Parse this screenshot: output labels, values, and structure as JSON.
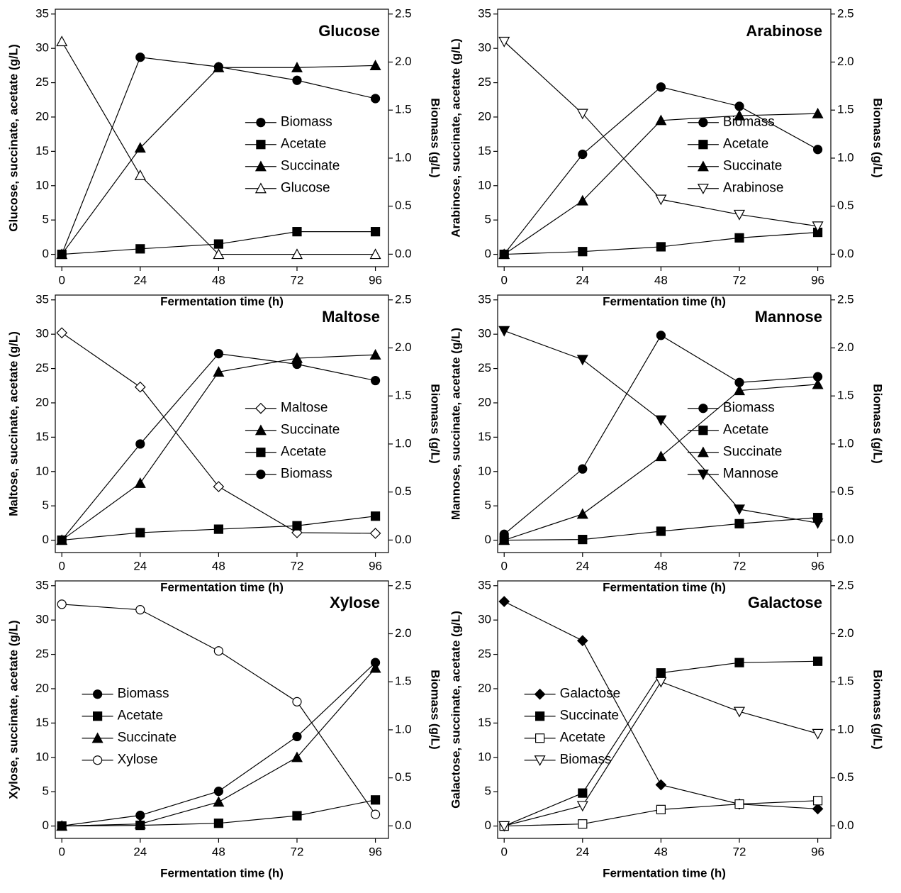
{
  "chart_data": [
    {
      "type": "line",
      "title": "Glucose",
      "x_label": "Fermentation time (h)",
      "y_label": "Glucose, succinate, acetate (g/L)",
      "y2_label": "Biomass (g/L)",
      "x": [
        0,
        24,
        48,
        72,
        96
      ],
      "xlim": [
        -2,
        100
      ],
      "xticks": [
        0,
        24,
        48,
        72,
        96
      ],
      "ylim": [
        -1.8,
        35.7
      ],
      "yticks": [
        0,
        5,
        10,
        15,
        20,
        25,
        30,
        35
      ],
      "y2lim": [
        -0.13,
        2.55
      ],
      "y2ticks": [
        {
          "value": 0,
          "label": "0.0"
        },
        0.5,
        {
          "value": 1,
          "label": "1.0"
        },
        1.5,
        {
          "value": 2,
          "label": "2.0"
        },
        2.5
      ],
      "legend_position": "center-right",
      "series": [
        {
          "name": "Biomass",
          "axis": "y2",
          "marker": "circle",
          "filled": true,
          "color": "#000000",
          "values": [
            0,
            2.05,
            1.95,
            1.81,
            1.62
          ]
        },
        {
          "name": "Acetate",
          "marker": "square",
          "filled": true,
          "color": "#000000",
          "values": [
            0,
            0.8,
            1.5,
            3.3,
            3.3
          ]
        },
        {
          "name": "Succinate",
          "marker": "triangle",
          "filled": true,
          "color": "#000000",
          "values": [
            0,
            15.5,
            27.2,
            27.2,
            27.5
          ]
        },
        {
          "name": "Glucose",
          "marker": "triangle",
          "filled": false,
          "color": "#000000",
          "values": [
            31,
            11.5,
            0,
            0,
            0
          ]
        }
      ]
    },
    {
      "type": "line",
      "title": "Arabinose",
      "x_label": "Fermentation time (h)",
      "y_label": "Arabinose, succinate, acetate (g/L)",
      "y2_label": "Biomass (g/L)",
      "x": [
        0,
        24,
        48,
        72,
        96
      ],
      "xlim": [
        -2,
        100
      ],
      "xticks": [
        0,
        24,
        48,
        72,
        96
      ],
      "ylim": [
        -1.8,
        35.7
      ],
      "yticks": [
        0,
        5,
        10,
        15,
        20,
        25,
        30,
        35
      ],
      "y2lim": [
        -0.13,
        2.55
      ],
      "y2ticks": [
        {
          "value": 0,
          "label": "0.0"
        },
        0.5,
        {
          "value": 1,
          "label": "1.0"
        },
        1.5,
        {
          "value": 2,
          "label": "2.0"
        },
        2.5
      ],
      "legend_position": "center-right",
      "series": [
        {
          "name": "Biomass",
          "axis": "y2",
          "marker": "circle",
          "filled": true,
          "color": "#000000",
          "values": [
            0,
            1.04,
            1.74,
            1.54,
            1.09
          ]
        },
        {
          "name": "Acetate",
          "marker": "square",
          "filled": true,
          "color": "#000000",
          "values": [
            0,
            0.4,
            1.1,
            2.4,
            3.2
          ]
        },
        {
          "name": "Succinate",
          "marker": "triangle",
          "filled": true,
          "color": "#000000",
          "values": [
            0,
            7.8,
            19.5,
            20.2,
            20.5
          ]
        },
        {
          "name": "Arabinose",
          "marker": "triangle-down",
          "filled": false,
          "color": "#000000",
          "values": [
            31,
            20.5,
            8,
            5.8,
            4.1
          ]
        }
      ]
    },
    {
      "type": "line",
      "title": "Maltose",
      "x_label": "Fermentation time (h)",
      "y_label": "Maltose, succinate, acetate (g/L)",
      "y2_label": "Biomass (g/L)",
      "x": [
        0,
        24,
        48,
        72,
        96
      ],
      "xlim": [
        -2,
        100
      ],
      "xticks": [
        0,
        24,
        48,
        72,
        96
      ],
      "ylim": [
        -1.8,
        35.7
      ],
      "yticks": [
        0,
        5,
        10,
        15,
        20,
        25,
        30,
        35
      ],
      "y2lim": [
        -0.13,
        2.55
      ],
      "y2ticks": [
        {
          "value": 0,
          "label": "0.0"
        },
        0.5,
        {
          "value": 1,
          "label": "1.0"
        },
        1.5,
        {
          "value": 2,
          "label": "2.0"
        },
        2.5
      ],
      "legend_position": "center-right",
      "series": [
        {
          "name": "Maltose",
          "marker": "diamond",
          "filled": false,
          "color": "#000000",
          "values": [
            30.2,
            22.3,
            7.8,
            1.1,
            1.0
          ]
        },
        {
          "name": "Succinate",
          "marker": "triangle",
          "filled": true,
          "color": "#000000",
          "values": [
            0,
            8.3,
            24.5,
            26.5,
            27
          ]
        },
        {
          "name": "Acetate",
          "marker": "square",
          "filled": true,
          "color": "#000000",
          "values": [
            0,
            1.1,
            1.6,
            2.1,
            3.5
          ]
        },
        {
          "name": "Biomass",
          "axis": "y2",
          "marker": "circle",
          "filled": true,
          "color": "#000000",
          "values": [
            0,
            1.0,
            1.94,
            1.83,
            1.66
          ]
        }
      ]
    },
    {
      "type": "line",
      "title": "Mannose",
      "x_label": "Fermentation time (h)",
      "y_label": "Mannose, succinate, acetate (g/L)",
      "y2_label": "Biomass (g/L)",
      "x": [
        0,
        24,
        48,
        72,
        96
      ],
      "xlim": [
        -2,
        100
      ],
      "xticks": [
        0,
        24,
        48,
        72,
        96
      ],
      "ylim": [
        -1.8,
        35.7
      ],
      "yticks": [
        0,
        5,
        10,
        15,
        20,
        25,
        30,
        35
      ],
      "y2lim": [
        -0.13,
        2.55
      ],
      "y2ticks": [
        {
          "value": 0,
          "label": "0.0"
        },
        0.5,
        {
          "value": 1,
          "label": "1.0"
        },
        1.5,
        {
          "value": 2,
          "label": "2.0"
        },
        2.5
      ],
      "legend_position": "center-right",
      "series": [
        {
          "name": "Biomass",
          "axis": "y2",
          "marker": "circle",
          "filled": true,
          "color": "#000000",
          "values": [
            0.06,
            0.74,
            2.13,
            1.64,
            1.7
          ]
        },
        {
          "name": "Acetate",
          "marker": "square",
          "filled": true,
          "color": "#000000",
          "values": [
            0,
            0.1,
            1.3,
            2.4,
            3.3
          ]
        },
        {
          "name": "Succinate",
          "marker": "triangle",
          "filled": true,
          "color": "#000000",
          "values": [
            0,
            3.8,
            12.2,
            21.8,
            22.7
          ]
        },
        {
          "name": "Mannose",
          "marker": "triangle-down",
          "filled": true,
          "color": "#000000",
          "values": [
            30.5,
            26.3,
            17.5,
            4.5,
            2.5
          ]
        }
      ]
    },
    {
      "type": "line",
      "title": "Xylose",
      "x_label": "Fermentation time (h)",
      "y_label": "Xylose, succinate, acetate (g/L)",
      "y2_label": "Biomass (g/L)",
      "x": [
        0,
        24,
        48,
        72,
        96
      ],
      "xlim": [
        -2,
        100
      ],
      "xticks": [
        0,
        24,
        48,
        72,
        96
      ],
      "ylim": [
        -1.8,
        35.7
      ],
      "yticks": [
        0,
        5,
        10,
        15,
        20,
        25,
        30,
        35
      ],
      "y2lim": [
        -0.13,
        2.55
      ],
      "y2ticks": [
        {
          "value": 0,
          "label": "0.0"
        },
        0.5,
        {
          "value": 1,
          "label": "1.0"
        },
        1.5,
        {
          "value": 2,
          "label": "2.0"
        },
        2.5
      ],
      "legend_position": "center-left",
      "series": [
        {
          "name": "Biomass",
          "axis": "y2",
          "marker": "circle",
          "filled": true,
          "color": "#000000",
          "values": [
            0,
            0.11,
            0.36,
            0.93,
            1.7
          ]
        },
        {
          "name": "Acetate",
          "marker": "square",
          "filled": true,
          "color": "#000000",
          "values": [
            0,
            0.1,
            0.4,
            1.5,
            3.8
          ]
        },
        {
          "name": "Succinate",
          "marker": "triangle",
          "filled": true,
          "color": "#000000",
          "values": [
            0,
            0.3,
            3.5,
            10,
            23
          ]
        },
        {
          "name": "Xylose",
          "marker": "circle",
          "filled": false,
          "color": "#000000",
          "values": [
            32.3,
            31.5,
            25.5,
            18.1,
            1.7
          ]
        }
      ]
    },
    {
      "type": "line",
      "title": "Galactose",
      "x_label": "Fermentation time (h)",
      "y_label": "Galactose, succinate, acetate (g/L)",
      "y2_label": "Biomass (g/L)",
      "x": [
        0,
        24,
        48,
        72,
        96
      ],
      "xlim": [
        -2,
        100
      ],
      "xticks": [
        0,
        24,
        48,
        72,
        96
      ],
      "ylim": [
        -1.8,
        35.7
      ],
      "yticks": [
        0,
        5,
        10,
        15,
        20,
        25,
        30,
        35
      ],
      "y2lim": [
        -0.13,
        2.55
      ],
      "y2ticks": [
        {
          "value": 0,
          "label": "0.0"
        },
        0.5,
        {
          "value": 1,
          "label": "1.0"
        },
        1.5,
        {
          "value": 2,
          "label": "2.0"
        },
        2.5
      ],
      "legend_position": "center-left",
      "series": [
        {
          "name": "Galactose",
          "marker": "diamond",
          "filled": true,
          "color": "#000000",
          "values": [
            32.7,
            27,
            6,
            3.2,
            2.5
          ]
        },
        {
          "name": "Succinate",
          "marker": "square",
          "filled": true,
          "color": "#000000",
          "values": [
            0,
            4.8,
            22.3,
            23.8,
            24
          ]
        },
        {
          "name": "Acetate",
          "marker": "square",
          "filled": false,
          "color": "#000000",
          "values": [
            0,
            0.3,
            2.4,
            3.2,
            3.7
          ]
        },
        {
          "name": "Biomass",
          "axis": "y2",
          "marker": "triangle-down",
          "filled": false,
          "color": "#000000",
          "values": [
            0,
            0.21,
            1.5,
            1.19,
            0.96
          ]
        }
      ]
    }
  ]
}
